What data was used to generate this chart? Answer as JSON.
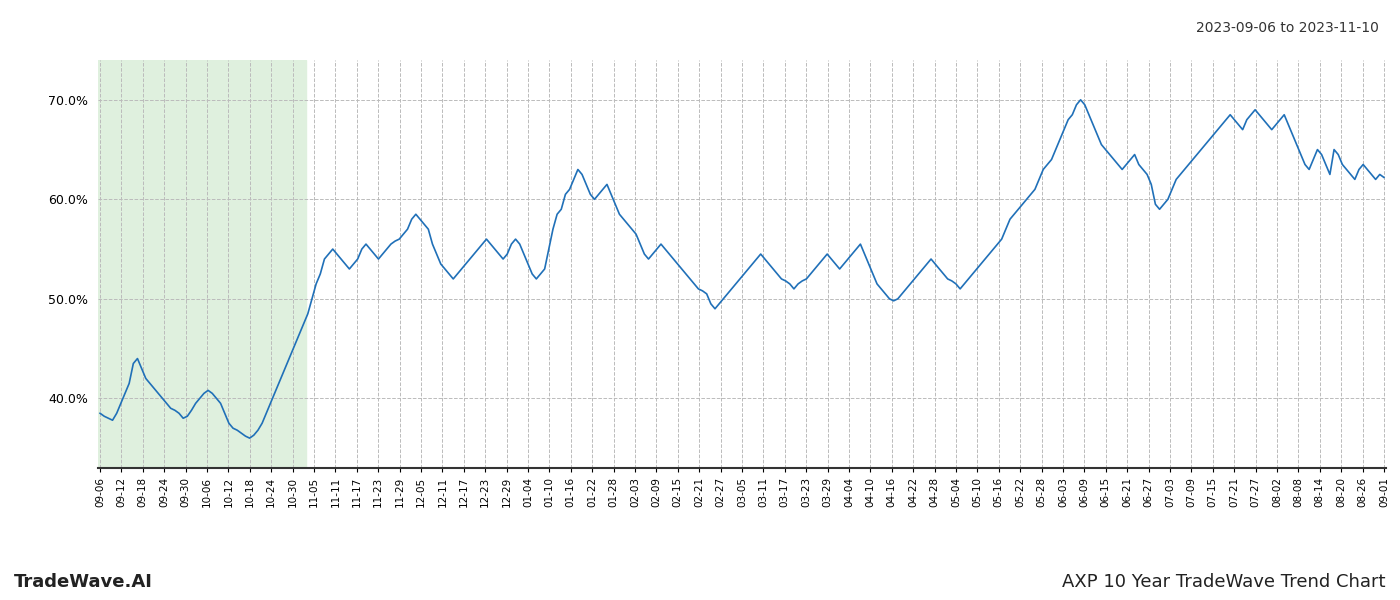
{
  "title_top_right": "2023-09-06 to 2023-11-10",
  "title_bottom_left": "TradeWave.AI",
  "title_bottom_right": "AXP 10 Year TradeWave Trend Chart",
  "y_ticks": [
    40.0,
    50.0,
    60.0,
    70.0
  ],
  "y_min": 33,
  "y_max": 74,
  "line_color": "#2070b8",
  "line_width": 1.2,
  "highlight_color": "#dff0de",
  "grid_color": "#bbbbbb",
  "background_color": "#ffffff",
  "x_labels": [
    "09-06",
    "09-12",
    "09-18",
    "09-24",
    "09-30",
    "10-06",
    "10-12",
    "10-18",
    "10-24",
    "10-30",
    "11-05",
    "11-11",
    "11-17",
    "11-23",
    "11-29",
    "12-05",
    "12-11",
    "12-17",
    "12-23",
    "12-29",
    "01-04",
    "01-10",
    "01-16",
    "01-22",
    "01-28",
    "02-03",
    "02-09",
    "02-15",
    "02-21",
    "02-27",
    "03-05",
    "03-11",
    "03-17",
    "03-23",
    "03-29",
    "04-04",
    "04-10",
    "04-16",
    "04-22",
    "04-28",
    "05-04",
    "05-10",
    "05-16",
    "05-22",
    "05-28",
    "06-03",
    "06-09",
    "06-15",
    "06-21",
    "06-27",
    "07-03",
    "07-09",
    "07-15",
    "07-21",
    "07-27",
    "08-02",
    "08-08",
    "08-14",
    "08-20",
    "08-26",
    "09-01"
  ],
  "highlight_n_points": 50,
  "values": [
    38.5,
    38.2,
    38.0,
    37.8,
    38.5,
    39.5,
    40.5,
    41.5,
    43.5,
    44.0,
    43.0,
    42.0,
    41.5,
    41.0,
    40.5,
    40.0,
    39.5,
    39.0,
    38.8,
    38.5,
    38.0,
    38.2,
    38.8,
    39.5,
    40.0,
    40.5,
    40.8,
    40.5,
    40.0,
    39.5,
    38.5,
    37.5,
    37.0,
    36.8,
    36.5,
    36.2,
    36.0,
    36.3,
    36.8,
    37.5,
    38.5,
    39.5,
    40.5,
    41.5,
    42.5,
    43.5,
    44.5,
    45.5,
    46.5,
    47.5,
    48.5,
    50.0,
    51.5,
    52.5,
    54.0,
    54.5,
    55.0,
    54.5,
    54.0,
    53.5,
    53.0,
    53.5,
    54.0,
    55.0,
    55.5,
    55.0,
    54.5,
    54.0,
    54.5,
    55.0,
    55.5,
    55.8,
    56.0,
    56.5,
    57.0,
    58.0,
    58.5,
    58.0,
    57.5,
    57.0,
    55.5,
    54.5,
    53.5,
    53.0,
    52.5,
    52.0,
    52.5,
    53.0,
    53.5,
    54.0,
    54.5,
    55.0,
    55.5,
    56.0,
    55.5,
    55.0,
    54.5,
    54.0,
    54.5,
    55.5,
    56.0,
    55.5,
    54.5,
    53.5,
    52.5,
    52.0,
    52.5,
    53.0,
    55.0,
    57.0,
    58.5,
    59.0,
    60.5,
    61.0,
    62.0,
    63.0,
    62.5,
    61.5,
    60.5,
    60.0,
    60.5,
    61.0,
    61.5,
    60.5,
    59.5,
    58.5,
    58.0,
    57.5,
    57.0,
    56.5,
    55.5,
    54.5,
    54.0,
    54.5,
    55.0,
    55.5,
    55.0,
    54.5,
    54.0,
    53.5,
    53.0,
    52.5,
    52.0,
    51.5,
    51.0,
    50.8,
    50.5,
    49.5,
    49.0,
    49.5,
    50.0,
    50.5,
    51.0,
    51.5,
    52.0,
    52.5,
    53.0,
    53.5,
    54.0,
    54.5,
    54.0,
    53.5,
    53.0,
    52.5,
    52.0,
    51.8,
    51.5,
    51.0,
    51.5,
    51.8,
    52.0,
    52.5,
    53.0,
    53.5,
    54.0,
    54.5,
    54.0,
    53.5,
    53.0,
    53.5,
    54.0,
    54.5,
    55.0,
    55.5,
    54.5,
    53.5,
    52.5,
    51.5,
    51.0,
    50.5,
    50.0,
    49.8,
    50.0,
    50.5,
    51.0,
    51.5,
    52.0,
    52.5,
    53.0,
    53.5,
    54.0,
    53.5,
    53.0,
    52.5,
    52.0,
    51.8,
    51.5,
    51.0,
    51.5,
    52.0,
    52.5,
    53.0,
    53.5,
    54.0,
    54.5,
    55.0,
    55.5,
    56.0,
    57.0,
    58.0,
    58.5,
    59.0,
    59.5,
    60.0,
    60.5,
    61.0,
    62.0,
    63.0,
    63.5,
    64.0,
    65.0,
    66.0,
    67.0,
    68.0,
    68.5,
    69.5,
    70.0,
    69.5,
    68.5,
    67.5,
    66.5,
    65.5,
    65.0,
    64.5,
    64.0,
    63.5,
    63.0,
    63.5,
    64.0,
    64.5,
    63.5,
    63.0,
    62.5,
    61.5,
    59.5,
    59.0,
    59.5,
    60.0,
    61.0,
    62.0,
    62.5,
    63.0,
    63.5,
    64.0,
    64.5,
    65.0,
    65.5,
    66.0,
    66.5,
    67.0,
    67.5,
    68.0,
    68.5,
    68.0,
    67.5,
    67.0,
    68.0,
    68.5,
    69.0,
    68.5,
    68.0,
    67.5,
    67.0,
    67.5,
    68.0,
    68.5,
    67.5,
    66.5,
    65.5,
    64.5,
    63.5,
    63.0,
    64.0,
    65.0,
    64.5,
    63.5,
    62.5,
    65.0,
    64.5,
    63.5,
    63.0,
    62.5,
    62.0,
    63.0,
    63.5,
    63.0,
    62.5,
    62.0,
    62.5,
    62.2
  ]
}
